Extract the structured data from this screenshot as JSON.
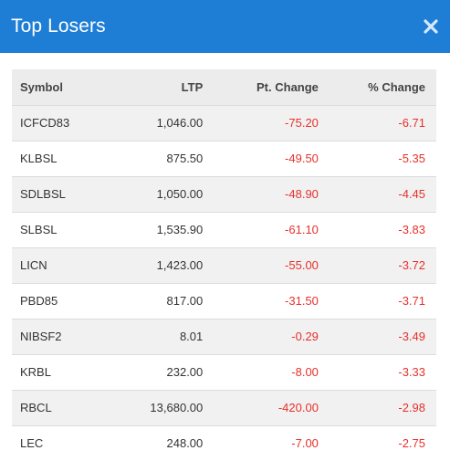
{
  "dialog": {
    "title": "Top Losers",
    "close_icon": "close-icon"
  },
  "colors": {
    "header_bg": "#1e7ed6",
    "negative": "#e8302c",
    "row_alt": "#f1f1f1"
  },
  "table": {
    "headers": [
      "Symbol",
      "LTP",
      "Pt. Change",
      "% Change"
    ],
    "rows": [
      {
        "symbol": "ICFCD83",
        "ltp": "1,046.00",
        "pt_change": "-75.20",
        "pct_change": "-6.71"
      },
      {
        "symbol": "KLBSL",
        "ltp": "875.50",
        "pt_change": "-49.50",
        "pct_change": "-5.35"
      },
      {
        "symbol": "SDLBSL",
        "ltp": "1,050.00",
        "pt_change": "-48.90",
        "pct_change": "-4.45"
      },
      {
        "symbol": "SLBSL",
        "ltp": "1,535.90",
        "pt_change": "-61.10",
        "pct_change": "-3.83"
      },
      {
        "symbol": "LICN",
        "ltp": "1,423.00",
        "pt_change": "-55.00",
        "pct_change": "-3.72"
      },
      {
        "symbol": "PBD85",
        "ltp": "817.00",
        "pt_change": "-31.50",
        "pct_change": "-3.71"
      },
      {
        "symbol": "NIBSF2",
        "ltp": "8.01",
        "pt_change": "-0.29",
        "pct_change": "-3.49"
      },
      {
        "symbol": "KRBL",
        "ltp": "232.00",
        "pt_change": "-8.00",
        "pct_change": "-3.33"
      },
      {
        "symbol": "RBCL",
        "ltp": "13,680.00",
        "pt_change": "-420.00",
        "pct_change": "-2.98"
      },
      {
        "symbol": "LEC",
        "ltp": "248.00",
        "pt_change": "-7.00",
        "pct_change": "-2.75"
      }
    ]
  }
}
